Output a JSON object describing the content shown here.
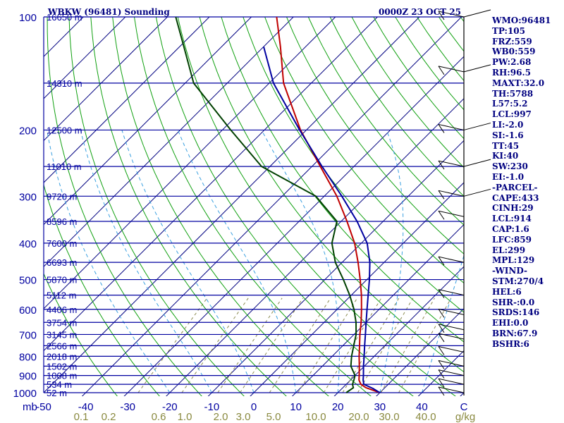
{
  "chart_data": {
    "type": "line",
    "title_left": "WBKW (96481) Sounding",
    "title_right": "0000Z 23 OCT 25",
    "axis_unit_left": "mb",
    "xlabel_unit": "g/kg",
    "x_ticks_temperature": [
      "-50",
      "-40",
      "-30",
      "-20",
      "-10",
      "0",
      "10",
      "20",
      "30",
      "40"
    ],
    "x_tick_last": "C",
    "mixing_ratio_labels": [
      "0.1",
      "0.2",
      "0.6",
      "1.0",
      "2.0",
      "3.0",
      "5.0",
      "10.0",
      "20.0",
      "30.0",
      "40.0"
    ],
    "pressure_levels": [
      {
        "p": 100,
        "label": "100",
        "height": "16650 m"
      },
      {
        "p": 150,
        "label": "",
        "height": "14310 m"
      },
      {
        "p": 200,
        "label": "200",
        "height": "12500 m"
      },
      {
        "p": 250,
        "label": "",
        "height": "11010 m"
      },
      {
        "p": 300,
        "label": "300",
        "height": "9720 m"
      },
      {
        "p": 350,
        "label": "",
        "height": "8596 m"
      },
      {
        "p": 400,
        "label": "400",
        "height": "7600 m"
      },
      {
        "p": 450,
        "label": "",
        "height": "6693 m"
      },
      {
        "p": 500,
        "label": "500",
        "height": "5870 m"
      },
      {
        "p": 550,
        "label": "",
        "height": "5112 m"
      },
      {
        "p": 600,
        "label": "600",
        "height": "4406 m"
      },
      {
        "p": 650,
        "label": "",
        "height": "3754 m"
      },
      {
        "p": 700,
        "label": "700",
        "height": "3145 m"
      },
      {
        "p": 750,
        "label": "",
        "height": "2566 m"
      },
      {
        "p": 800,
        "label": "800",
        "height": "2018 m"
      },
      {
        "p": 850,
        "label": "",
        "height": "1502 m"
      },
      {
        "p": 900,
        "label": "900",
        "height": "1008 m"
      },
      {
        "p": 950,
        "label": "",
        "height": "534 m"
      },
      {
        "p": 1000,
        "label": "1000",
        "height": "52 m"
      }
    ],
    "series": [
      {
        "name": "Temperature",
        "color": "#c00000",
        "points": [
          [
            1000,
            30
          ],
          [
            970,
            25.5
          ],
          [
            950,
            23.5
          ],
          [
            925,
            22
          ],
          [
            900,
            21
          ],
          [
            850,
            18.8
          ],
          [
            800,
            16.4
          ],
          [
            750,
            14
          ],
          [
            700,
            11.4
          ],
          [
            650,
            8.8
          ],
          [
            600,
            5.8
          ],
          [
            550,
            2.4
          ],
          [
            500,
            -1.6
          ],
          [
            450,
            -6.2
          ],
          [
            400,
            -11.6
          ],
          [
            350,
            -18.6
          ],
          [
            300,
            -27
          ],
          [
            250,
            -38
          ],
          [
            200,
            -51.4
          ],
          [
            150,
            -66.6
          ],
          [
            120,
            -76
          ],
          [
            100,
            -84
          ]
        ]
      },
      {
        "name": "Dewpoint",
        "color": "#004000",
        "points": [
          [
            1000,
            22
          ],
          [
            970,
            22.5
          ],
          [
            950,
            21.5
          ],
          [
            925,
            20.8
          ],
          [
            900,
            20
          ],
          [
            850,
            16.8
          ],
          [
            800,
            14.6
          ],
          [
            750,
            12.6
          ],
          [
            700,
            10.5
          ],
          [
            650,
            7.6
          ],
          [
            600,
            4
          ],
          [
            550,
            -0.4
          ],
          [
            500,
            -5.6
          ],
          [
            450,
            -11.6
          ],
          [
            400,
            -17
          ],
          [
            350,
            -21
          ],
          [
            300,
            -32
          ],
          [
            250,
            -52
          ],
          [
            200,
            -68
          ],
          [
            150,
            -88
          ],
          [
            120,
            -99
          ],
          [
            100,
            -108
          ]
        ]
      },
      {
        "name": "Parcel",
        "color": "#0000a0",
        "points": [
          [
            1000,
            30
          ],
          [
            975,
            27.4
          ],
          [
            950,
            24.2
          ],
          [
            925,
            23
          ],
          [
            900,
            22
          ],
          [
            850,
            19.8
          ],
          [
            800,
            17.6
          ],
          [
            750,
            15.2
          ],
          [
            700,
            12.7
          ],
          [
            650,
            10
          ],
          [
            600,
            7.1
          ],
          [
            550,
            4
          ],
          [
            500,
            0.6
          ],
          [
            450,
            -3.4
          ],
          [
            400,
            -8.6
          ],
          [
            350,
            -16.2
          ],
          [
            300,
            -25.8
          ],
          [
            250,
            -37.6
          ],
          [
            200,
            -51.6
          ],
          [
            150,
            -69
          ],
          [
            120,
            -80
          ]
        ]
      }
    ]
  },
  "indices": [
    "WMO:96481",
    "TP:105",
    "FRZ:559",
    "WB0:559",
    "PW:2.68",
    "RH:96.5",
    "MAXT:32.0",
    "TH:5788",
    "L57:5.2",
    "LCL:997",
    "LI:-2.0",
    "SI:-1.6",
    "TT:45",
    "KI:40",
    "SW:230",
    "EI:-1.0",
    "-PARCEL-",
    "CAPE:433",
    "CINH:29",
    "LCL:914",
    "CAP:1.6",
    "LFC:859",
    "EL:299",
    "MPL:129",
    "-WIND-",
    "STM:270/4",
    "HEL:6",
    "SHR-:0.0",
    "SRDS:146",
    "EHI:0.0",
    "BRN:67.9",
    "BSHR:6"
  ]
}
